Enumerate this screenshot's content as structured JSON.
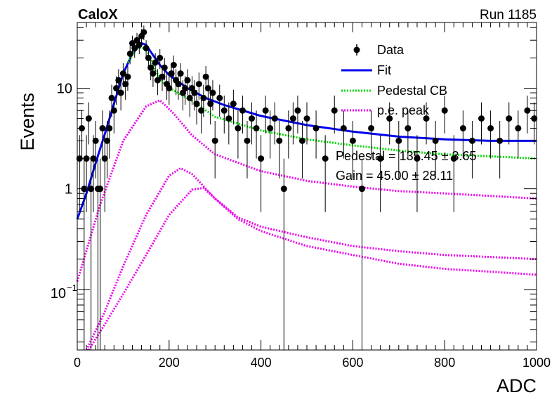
{
  "header": {
    "left": "CaloX",
    "right": "Run 1185"
  },
  "chart_data": {
    "type": "scatter",
    "xlabel": "ADC",
    "ylabel": "Events",
    "xlim": [
      0,
      1000
    ],
    "ylim": [
      0.025,
      45
    ],
    "yscale": "log",
    "xticks": [
      0,
      200,
      400,
      600,
      800,
      1000
    ],
    "ytick_labels": [
      {
        "value": 0.1,
        "base": "10",
        "exp": "−1"
      },
      {
        "value": 1,
        "label": "1"
      },
      {
        "value": 10,
        "label": "10"
      }
    ],
    "grid": false,
    "legend": {
      "placement": "top-right",
      "entries": [
        {
          "label": "Data",
          "kind": "marker",
          "color": "#000000"
        },
        {
          "label": "Fit",
          "kind": "line",
          "color": "#0000ee"
        },
        {
          "label": "Pedestal CB",
          "kind": "dotted",
          "color": "#00dd00"
        },
        {
          "label": "p.e. peak",
          "kind": "dotted",
          "color": "#ee00ee"
        }
      ]
    },
    "annotations": [
      "Pedestal = 135.45 ± 3.65",
      "Gain = 45.00 ± 28.11"
    ],
    "data": {
      "x": [
        5,
        10,
        15,
        20,
        25,
        30,
        35,
        40,
        45,
        50,
        55,
        60,
        65,
        70,
        75,
        80,
        85,
        90,
        95,
        100,
        105,
        110,
        115,
        120,
        125,
        130,
        135,
        140,
        145,
        150,
        155,
        160,
        165,
        170,
        175,
        180,
        185,
        190,
        195,
        200,
        205,
        210,
        215,
        220,
        225,
        230,
        235,
        240,
        245,
        250,
        255,
        260,
        265,
        270,
        275,
        280,
        285,
        290,
        295,
        300,
        310,
        320,
        330,
        340,
        350,
        360,
        370,
        380,
        390,
        400,
        410,
        420,
        430,
        440,
        450,
        460,
        470,
        480,
        490,
        500,
        520,
        540,
        560,
        580,
        600,
        620,
        640,
        660,
        680,
        700,
        720,
        740,
        760,
        780,
        800,
        820,
        840,
        860,
        880,
        900,
        920,
        940,
        960,
        980,
        995
      ],
      "y": [
        2,
        4,
        1,
        2,
        5,
        1,
        2,
        3,
        1,
        1,
        4,
        2,
        3,
        4,
        8,
        6,
        10,
        12,
        9,
        14,
        11,
        13,
        22,
        28,
        25,
        30,
        27,
        33,
        36,
        25,
        20,
        16,
        14,
        18,
        12,
        20,
        13,
        16,
        11,
        10,
        14,
        17,
        12,
        11,
        14,
        9,
        10,
        12,
        8,
        10,
        9,
        7,
        11,
        6,
        8,
        13,
        10,
        7,
        9,
        3,
        8,
        6,
        5,
        7,
        4,
        6,
        3,
        5,
        4,
        2,
        6,
        4,
        5,
        3,
        1,
        4,
        5,
        6,
        3,
        5,
        4,
        2,
        6,
        4,
        3,
        1,
        4,
        2,
        5,
        3,
        4,
        2,
        5,
        3,
        6,
        2,
        4,
        3,
        5,
        4,
        3,
        5,
        4,
        6,
        5
      ]
    },
    "series": [
      {
        "name": "Fit",
        "color": "#0000ee",
        "x": [
          0,
          20,
          40,
          60,
          80,
          100,
          120,
          140,
          150,
          160,
          180,
          200,
          240,
          280,
          320,
          400,
          500,
          600,
          700,
          800,
          900,
          1000
        ],
        "y": [
          0.5,
          0.9,
          1.8,
          3.5,
          7,
          14,
          22,
          28,
          27,
          23,
          17,
          13.5,
          10,
          8,
          6.8,
          5.3,
          4.3,
          3.7,
          3.3,
          3.1,
          3.0,
          3.0
        ]
      },
      {
        "name": "Pedestal CB",
        "color": "#00dd00",
        "x": [
          110,
          130,
          150,
          170,
          190,
          210,
          250,
          300,
          400,
          500,
          600,
          700,
          800,
          900,
          1000
        ],
        "y": [
          18,
          25,
          25,
          15,
          11,
          9.5,
          7.5,
          5.2,
          3.8,
          3.1,
          2.7,
          2.4,
          2.2,
          2.1,
          2.0
        ]
      },
      {
        "name": "p.e. peak 1",
        "color": "#ee00ee",
        "x": [
          0,
          50,
          100,
          150,
          180,
          210,
          250,
          300,
          400,
          500,
          600,
          700,
          800,
          900,
          1000
        ],
        "y": [
          0.12,
          0.7,
          3.0,
          6.6,
          7.6,
          5.6,
          3.4,
          2.2,
          1.5,
          1.2,
          1.05,
          0.95,
          0.9,
          0.85,
          0.8
        ]
      },
      {
        "name": "p.e. peak 2",
        "color": "#ee00ee",
        "x": [
          20,
          60,
          100,
          150,
          200,
          225,
          250,
          300,
          350,
          400,
          500,
          600,
          700,
          800,
          900,
          1000
        ],
        "y": [
          0.025,
          0.06,
          0.17,
          0.55,
          1.35,
          1.6,
          1.4,
          0.8,
          0.52,
          0.42,
          0.33,
          0.27,
          0.24,
          0.22,
          0.21,
          0.2
        ]
      },
      {
        "name": "p.e. peak 3",
        "color": "#ee00ee",
        "x": [
          25,
          60,
          100,
          150,
          200,
          250,
          275,
          300,
          350,
          400,
          500,
          600,
          700,
          800,
          900,
          1000
        ],
        "y": [
          0.025,
          0.045,
          0.09,
          0.22,
          0.55,
          0.98,
          1.02,
          0.8,
          0.5,
          0.38,
          0.27,
          0.22,
          0.18,
          0.16,
          0.15,
          0.14
        ]
      }
    ]
  }
}
